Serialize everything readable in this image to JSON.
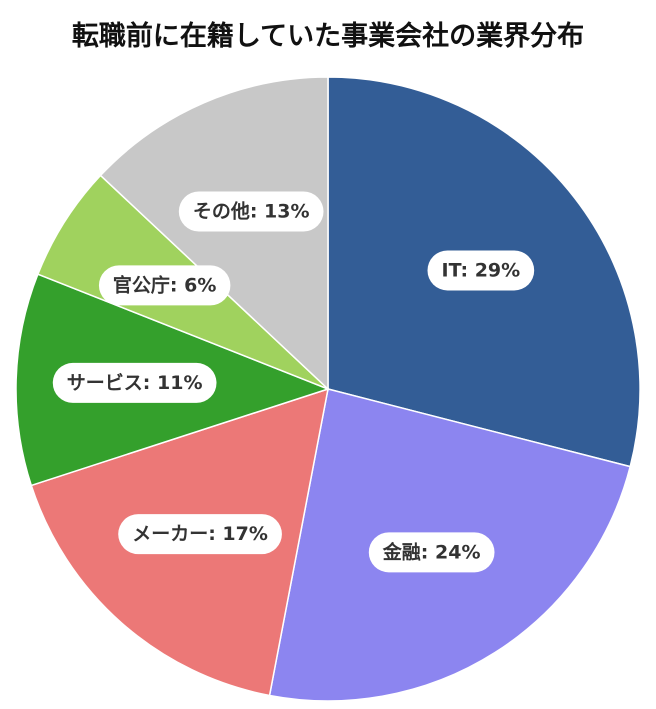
{
  "chart_data": {
    "type": "pie",
    "title": "転職前に在籍していた事業会社の業界分布",
    "slices": [
      {
        "label": "IT",
        "value": 29,
        "color": "#335d96"
      },
      {
        "label": "金融",
        "value": 24,
        "color": "#8c85f0"
      },
      {
        "label": "メーカー",
        "value": 17,
        "color": "#ec7877"
      },
      {
        "label": "サービス",
        "value": 11,
        "color": "#34a02c"
      },
      {
        "label": "官公庁",
        "value": 6,
        "color": "#a0d25e"
      },
      {
        "label": "その他",
        "value": 13,
        "color": "#c8c8c8"
      }
    ],
    "start_angle": "12 o'clock",
    "direction": "clockwise",
    "value_suffix": "%"
  }
}
